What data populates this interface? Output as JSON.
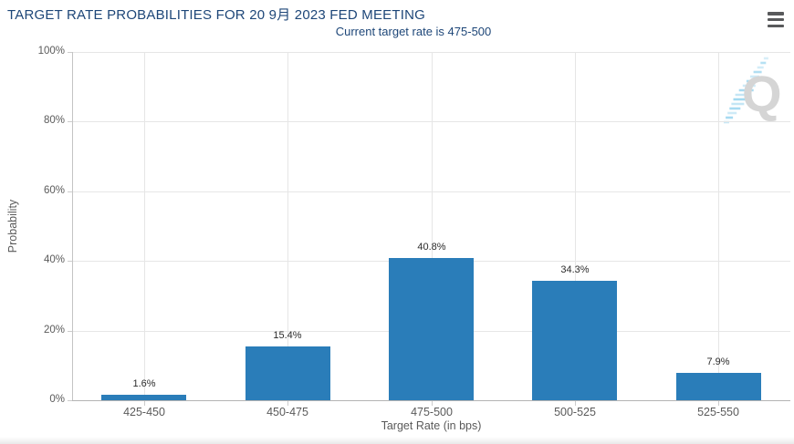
{
  "header": {
    "menu_icon": "hamburger-menu"
  },
  "chart_data": {
    "type": "bar",
    "title": "TARGET RATE PROBABILITIES FOR 20 9月 2023 FED MEETING",
    "subtitle": "Current target rate is 475-500",
    "categories": [
      "425-450",
      "450-475",
      "475-500",
      "500-525",
      "525-550"
    ],
    "values": [
      1.6,
      15.4,
      40.8,
      34.3,
      7.9
    ],
    "value_labels": [
      "1.6%",
      "15.4%",
      "40.8%",
      "34.3%",
      "7.9%"
    ],
    "xlabel": "Target Rate (in bps)",
    "ylabel": "Probability",
    "ylim": [
      0,
      100
    ],
    "yticks_percent": [
      0,
      20,
      40,
      60,
      80,
      100
    ],
    "ytick_labels": [
      "0%",
      "20%",
      "40%",
      "60%",
      "80%",
      "100%"
    ],
    "grid": true,
    "legend_position": "none",
    "bar_color": "#2a7db9"
  },
  "colors": {
    "title_text": "#1d4678",
    "bar": "#2a7db9",
    "gridline": "#e6e6e6",
    "axis_line": "#b3b3b3",
    "tick_label": "#5a5a5a",
    "value_label": "#2b2b2b",
    "watermark_gray": "#d5d5d5",
    "watermark_blue": "#9ed7f0",
    "menu_icon": "#58595b"
  },
  "watermark": {
    "letter": "Q"
  }
}
